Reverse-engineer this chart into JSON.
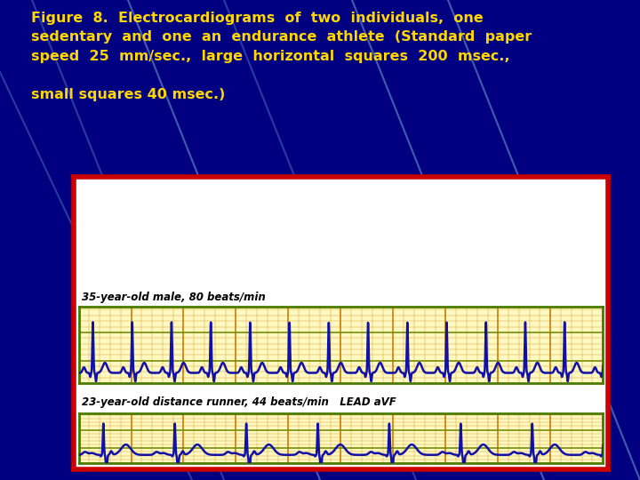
{
  "bg_color": "#000080",
  "title_line1": "Figure  8.  Electrocardiograms  of  two  individuals,  one",
  "title_line2": "sedentary  and  one  an  endurance  athlete  (Standard  paper",
  "title_line3": "speed  25  mm/sec.,  large  horizontal  squares  200  msec.,",
  "title_line4": "small squares 40 msec.)",
  "title_color": "#FFD700",
  "title_fontsize": 11.5,
  "ecg_bg": "#FFF8C0",
  "ecg_line_color": "#1111AA",
  "ecg_linewidth": 1.8,
  "grid_major_color": "#CC7700",
  "grid_minor_color": "#D4A840",
  "grid_horiz_color": "#6B8B00",
  "outer_border_color": "#CC0000",
  "outer_border_lw": 4,
  "inner_border_color": "#4B7B00",
  "inner_border_lw": 2,
  "label1": "35-year-old male, 80 beats/min",
  "label2": "23-year-old distance runner, 44 beats/min   LEAD aVF",
  "label_color": "#000000",
  "label_fontsize": 8.5,
  "panel_bg": "#FFFFFF",
  "diag_line_color": "#5577BB",
  "diag_line_alpha": 0.5,
  "diag_line_lw": 1.5
}
